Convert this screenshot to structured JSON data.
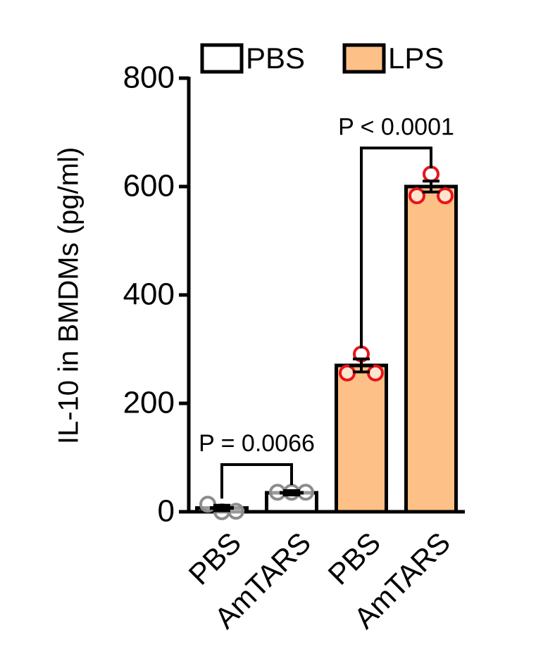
{
  "chart_data": {
    "type": "bar",
    "y_label": "IL-10 in BMDMs (pg/ml)",
    "categories": [
      "PBS",
      "AmTARS",
      "PBS",
      "AmTARS"
    ],
    "series": [
      {
        "name": "PBS",
        "color": "#ffffff",
        "point_color": "#8c8c8c",
        "values": [
          7,
          35,
          null,
          null
        ],
        "errors": [
          5,
          4,
          null,
          null
        ],
        "points": [
          [
            14,
            0,
            1
          ],
          [
            36,
            36,
            36
          ],
          null,
          null
        ]
      },
      {
        "name": "LPS",
        "color": "#fdc086",
        "point_color": "#e8141c",
        "values": [
          null,
          null,
          270,
          600
        ],
        "errors": [
          null,
          null,
          12,
          10
        ],
        "points": [
          null,
          null,
          [
            256,
            291,
            256
          ],
          [
            583,
            623,
            583
          ]
        ]
      }
    ],
    "annotations": [
      "P = 0.0066",
      "P < 0.0001"
    ],
    "ylim": [
      0,
      800
    ],
    "yticks": [
      0,
      200,
      400,
      600,
      800
    ]
  }
}
